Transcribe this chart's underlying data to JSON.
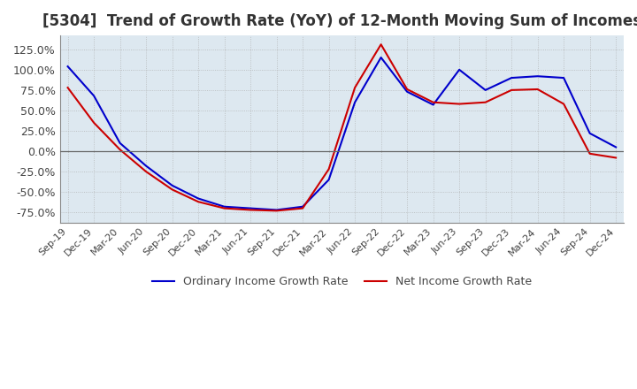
{
  "title": "[5304]  Trend of Growth Rate (YoY) of 12-Month Moving Sum of Incomes",
  "title_fontsize": 12,
  "ylim": [
    -87.5,
    142.0
  ],
  "yticks": [
    -75.0,
    -50.0,
    -25.0,
    0.0,
    25.0,
    50.0,
    75.0,
    100.0,
    125.0
  ],
  "background_color": "#dde8f0",
  "grid_color": "#aaaaaa",
  "ordinary_color": "#0000cc",
  "net_color": "#cc0000",
  "legend_ordinary": "Ordinary Income Growth Rate",
  "legend_net": "Net Income Growth Rate",
  "dates": [
    "Sep-19",
    "Dec-19",
    "Mar-20",
    "Jun-20",
    "Sep-20",
    "Dec-20",
    "Mar-21",
    "Jun-21",
    "Sep-21",
    "Dec-21",
    "Mar-22",
    "Jun-22",
    "Sep-22",
    "Dec-22",
    "Mar-23",
    "Jun-23",
    "Sep-23",
    "Dec-23",
    "Mar-24",
    "Jun-24",
    "Sep-24",
    "Dec-24"
  ],
  "ordinary_income_growth": [
    104.0,
    68.0,
    10.0,
    -18.0,
    -42.0,
    -58.0,
    -68.0,
    -70.0,
    -72.0,
    -68.0,
    -35.0,
    60.0,
    115.0,
    73.0,
    57.0,
    100.0,
    75.0,
    90.0,
    92.0,
    90.0,
    22.0,
    5.0
  ],
  "net_income_growth": [
    78.0,
    35.0,
    2.0,
    -25.0,
    -47.0,
    -62.0,
    -70.0,
    -72.0,
    -73.0,
    -70.0,
    -22.0,
    78.0,
    131.0,
    76.0,
    60.0,
    58.0,
    60.0,
    75.0,
    76.0,
    58.0,
    -3.0,
    -8.0
  ]
}
